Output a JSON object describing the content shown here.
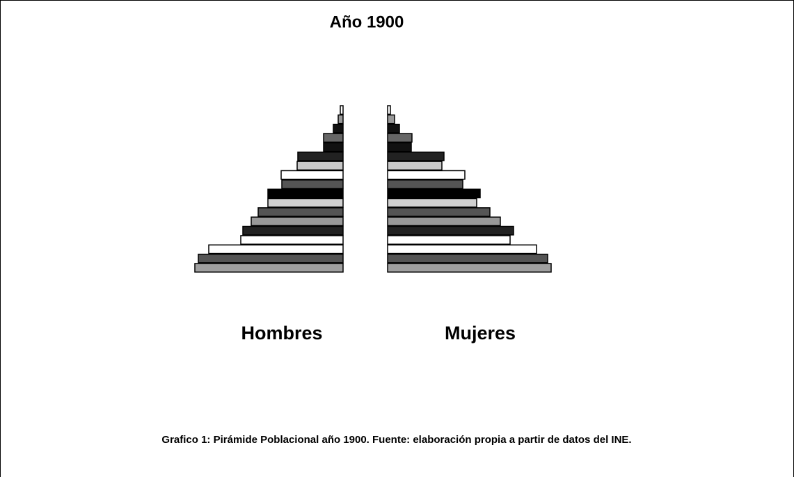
{
  "chart_data": {
    "type": "pyramid",
    "title": "Año 1900",
    "caption": "Grafico 1: Pirámide Poblacional año 1900. Fuente: elaboración propia a partir de datos del INE.",
    "colors": [
      "#ffffff",
      "#999999",
      "#111111",
      "#666666",
      "#111111",
      "#222222",
      "#c8c8c8",
      "#ffffff",
      "#555555",
      "#000000",
      "#d0d0d0",
      "#555555",
      "#999999",
      "#222222",
      "#ffffff",
      "#ffffff",
      "#555555",
      "#a0a0a0"
    ],
    "series": [
      {
        "name": "Hombres",
        "values": [
          4,
          7,
          14,
          28,
          28,
          65,
          66,
          89,
          88,
          108,
          108,
          122,
          132,
          144,
          147,
          193,
          208,
          213
        ]
      },
      {
        "name": "Mujeres",
        "values": [
          4,
          10,
          17,
          35,
          34,
          81,
          78,
          111,
          108,
          133,
          128,
          147,
          162,
          181,
          176,
          214,
          230,
          235
        ]
      }
    ]
  }
}
